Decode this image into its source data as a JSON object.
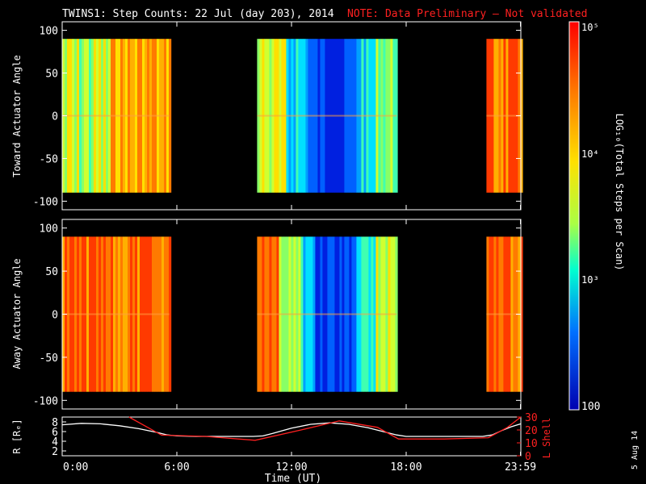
{
  "title": {
    "main": "TWINS1: Step Counts: 22 Jul (day 203), 2014",
    "note": "NOTE: Data Preliminary – Not validated"
  },
  "colorbar": {
    "label": "LOG₁₀(Total Steps per Scan)",
    "ticks": [
      "10⁵",
      "10⁴",
      "10³",
      "100"
    ],
    "colors": [
      "#ff0000",
      "#ff7a00",
      "#ffe000",
      "#aaff44",
      "#00ffd0",
      "#0070ff",
      "#0000b0"
    ]
  },
  "side_stamp": "5 Aug 14",
  "chart_data": [
    {
      "type": "heatmap",
      "ylabel": "Toward Actuator Angle",
      "ylim": [
        -110,
        110
      ],
      "yticks": [
        "100",
        "50",
        "0",
        "-50",
        "-100"
      ],
      "data_ylim": [
        -90,
        90
      ],
      "intervals": [
        {
          "start": 0.0,
          "end": 5.6,
          "profile": "yellow-green"
        },
        {
          "start": 10.2,
          "end": 17.5,
          "profile": "blue-dip"
        },
        {
          "start": 22.2,
          "end": 24.0,
          "profile": "orange"
        }
      ]
    },
    {
      "type": "heatmap",
      "ylabel": "Away Actuator Angle",
      "ylim": [
        -110,
        110
      ],
      "yticks": [
        "100",
        "50",
        "0",
        "-50",
        "-100"
      ],
      "data_ylim": [
        -90,
        90
      ],
      "intervals": [
        {
          "start": 0.0,
          "end": 5.6,
          "profile": "orange"
        },
        {
          "start": 10.2,
          "end": 17.5,
          "profile": "orange-blue"
        },
        {
          "start": 22.2,
          "end": 24.0,
          "profile": "orange"
        }
      ]
    },
    {
      "type": "line",
      "xlabel": "Time (UT)",
      "xticks": [
        "0:00",
        "6:00",
        "12:00",
        "18:00",
        "23:59"
      ],
      "xtick_values": [
        0,
        6,
        12,
        18,
        23.98
      ],
      "ylabel_left": "R [Rₑ]",
      "ylim_left": [
        1,
        9
      ],
      "yticks_left": [
        "8",
        "6",
        "4",
        "2"
      ],
      "ylabel_right": "L Shell",
      "ylim_right": [
        0,
        30
      ],
      "yticks_right": [
        "30",
        "20",
        "10",
        "0"
      ],
      "series": [
        {
          "axis": "left",
          "color": "#ffffff",
          "x": [
            0,
            1,
            2,
            3,
            4,
            5,
            5.5,
            6,
            7,
            8,
            9,
            10,
            10.5,
            11,
            12,
            13,
            14,
            15,
            16,
            17,
            17.5,
            18,
            19,
            20,
            21,
            22,
            22.5,
            23,
            23.5,
            24
          ],
          "y": [
            7.4,
            7.7,
            7.6,
            7.2,
            6.6,
            5.8,
            5.3,
            5.1,
            5.0,
            5.0,
            5.0,
            5.0,
            5.1,
            5.6,
            6.7,
            7.5,
            7.8,
            7.5,
            6.8,
            5.8,
            5.3,
            5.0,
            5.0,
            5.0,
            5.0,
            5.0,
            5.3,
            6.2,
            7.0,
            7.6
          ]
        },
        {
          "axis": "right",
          "color": "#ff2020",
          "x": [
            3.5,
            5.2,
            7.5,
            10.1,
            12.5,
            14.5,
            16.5,
            17.6,
            20.0,
            22.3,
            23.3,
            24.0
          ],
          "y": [
            30,
            16,
            15,
            12,
            20,
            27,
            22,
            13,
            13,
            14,
            22,
            30
          ]
        }
      ]
    }
  ]
}
